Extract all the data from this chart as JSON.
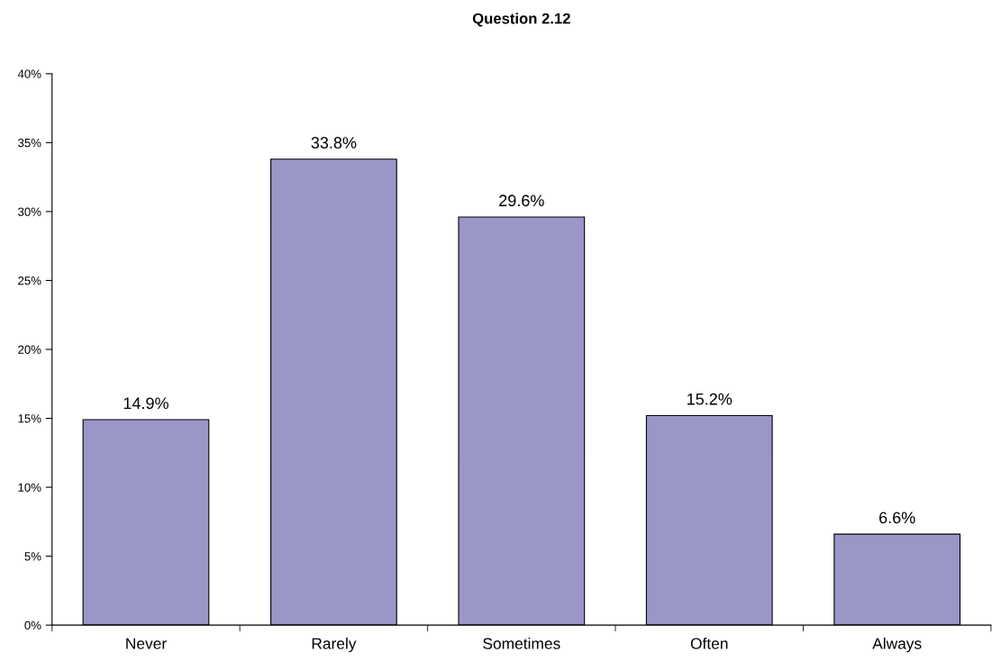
{
  "chart_data": {
    "type": "bar",
    "title": "Question 2.12",
    "categories": [
      "Never",
      "Rarely",
      "Sometimes",
      "Often",
      "Always"
    ],
    "values": [
      14.9,
      33.8,
      29.6,
      15.2,
      6.6
    ],
    "value_labels": [
      "14.9%",
      "33.8%",
      "29.6%",
      "15.2%",
      "6.6%"
    ],
    "color": "#9b96c8",
    "ylim": [
      0,
      40
    ],
    "yticks": [
      {
        "value": 0,
        "label": "0%"
      },
      {
        "value": 5,
        "label": "5%"
      },
      {
        "value": 10,
        "label": "10%"
      },
      {
        "value": 15,
        "label": "15%"
      },
      {
        "value": 20,
        "label": "20%"
      },
      {
        "value": 25,
        "label": "25%"
      },
      {
        "value": 30,
        "label": "30%"
      },
      {
        "value": 35,
        "label": "35%"
      },
      {
        "value": 40,
        "label": "40%"
      }
    ],
    "grid": false,
    "legend": false
  }
}
